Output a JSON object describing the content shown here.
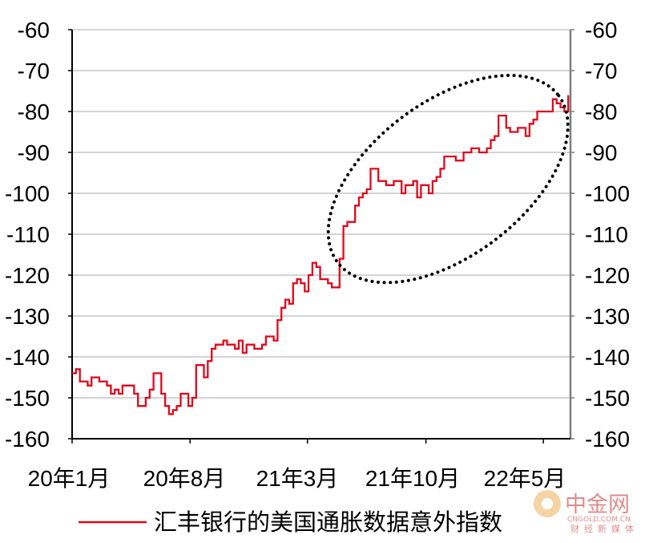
{
  "chart_data": {
    "type": "line",
    "title": "",
    "xlabel": "",
    "ylabel": "",
    "ylim": [
      -160,
      -60
    ],
    "y_ticks": [
      -60,
      -70,
      -80,
      -90,
      -100,
      -110,
      -120,
      -130,
      -140,
      -150,
      -160
    ],
    "y_tick_labels": [
      "-60",
      "-70",
      "-80",
      "-90",
      "-100",
      "-110",
      "-120",
      "-130",
      "-140",
      "-150",
      "-160"
    ],
    "x_tick_labels": [
      "20年1月",
      "20年8月",
      "21年3月",
      "21年10月",
      "22年5月"
    ],
    "grid": "horizontal",
    "legend_position": "bottom",
    "series": [
      {
        "name": "汇丰银行的美国通胀数据意外指数",
        "color": "#e0081c",
        "points": [
          [
            "2020-01-01",
            -144
          ],
          [
            "2020-01-08",
            -143
          ],
          [
            "2020-01-15",
            -146
          ],
          [
            "2020-01-29",
            -147
          ],
          [
            "2020-02-05",
            -145
          ],
          [
            "2020-02-19",
            -146
          ],
          [
            "2020-03-04",
            -147
          ],
          [
            "2020-03-11",
            -149
          ],
          [
            "2020-03-18",
            -148
          ],
          [
            "2020-03-25",
            -149
          ],
          [
            "2020-04-01",
            -147
          ],
          [
            "2020-04-22",
            -149
          ],
          [
            "2020-04-29",
            -152
          ],
          [
            "2020-05-13",
            -150
          ],
          [
            "2020-05-20",
            -148
          ],
          [
            "2020-05-27",
            -144
          ],
          [
            "2020-06-10",
            -149
          ],
          [
            "2020-06-17",
            -152
          ],
          [
            "2020-06-24",
            -154
          ],
          [
            "2020-07-01",
            -153
          ],
          [
            "2020-07-08",
            -152
          ],
          [
            "2020-07-15",
            -149
          ],
          [
            "2020-07-29",
            -152
          ],
          [
            "2020-08-05",
            -150
          ],
          [
            "2020-08-12",
            -142
          ],
          [
            "2020-08-26",
            -145
          ],
          [
            "2020-09-02",
            -141
          ],
          [
            "2020-09-09",
            -138
          ],
          [
            "2020-09-16",
            -137
          ],
          [
            "2020-09-30",
            -136
          ],
          [
            "2020-10-07",
            -137
          ],
          [
            "2020-10-21",
            -138
          ],
          [
            "2020-10-28",
            -136
          ],
          [
            "2020-11-04",
            -139
          ],
          [
            "2020-11-11",
            -137
          ],
          [
            "2020-11-25",
            -138
          ],
          [
            "2020-12-09",
            -137
          ],
          [
            "2020-12-16",
            -135
          ],
          [
            "2020-12-30",
            -136
          ],
          [
            "2021-01-06",
            -131
          ],
          [
            "2021-01-13",
            -128
          ],
          [
            "2021-01-20",
            -126
          ],
          [
            "2021-01-27",
            -127
          ],
          [
            "2021-02-03",
            -122
          ],
          [
            "2021-02-10",
            -121
          ],
          [
            "2021-02-17",
            -122
          ],
          [
            "2021-02-24",
            -124
          ],
          [
            "2021-03-03",
            -120
          ],
          [
            "2021-03-10",
            -117
          ],
          [
            "2021-03-17",
            -118
          ],
          [
            "2021-03-24",
            -121
          ],
          [
            "2021-04-07",
            -122
          ],
          [
            "2021-04-14",
            -123
          ],
          [
            "2021-04-28",
            -116
          ],
          [
            "2021-05-05",
            -108
          ],
          [
            "2021-05-12",
            -107
          ],
          [
            "2021-05-26",
            -103
          ],
          [
            "2021-06-02",
            -101
          ],
          [
            "2021-06-09",
            -100
          ],
          [
            "2021-06-16",
            -99
          ],
          [
            "2021-06-23",
            -94
          ],
          [
            "2021-07-07",
            -97
          ],
          [
            "2021-07-21",
            -98
          ],
          [
            "2021-08-04",
            -97
          ],
          [
            "2021-08-18",
            -100
          ],
          [
            "2021-08-25",
            -98
          ],
          [
            "2021-09-08",
            -97
          ],
          [
            "2021-09-15",
            -101
          ],
          [
            "2021-09-22",
            -98
          ],
          [
            "2021-10-06",
            -100
          ],
          [
            "2021-10-13",
            -97
          ],
          [
            "2021-10-20",
            -96
          ],
          [
            "2021-10-27",
            -94
          ],
          [
            "2021-11-03",
            -91
          ],
          [
            "2021-11-24",
            -92
          ],
          [
            "2021-12-08",
            -90
          ],
          [
            "2021-12-22",
            -89
          ],
          [
            "2022-01-05",
            -90
          ],
          [
            "2022-01-19",
            -89
          ],
          [
            "2022-01-26",
            -87
          ],
          [
            "2022-02-02",
            -86
          ],
          [
            "2022-02-09",
            -81
          ],
          [
            "2022-02-23",
            -84
          ],
          [
            "2022-03-02",
            -85
          ],
          [
            "2022-03-16",
            -84
          ],
          [
            "2022-03-30",
            -86
          ],
          [
            "2022-04-06",
            -83
          ],
          [
            "2022-04-13",
            -82
          ],
          [
            "2022-04-20",
            -80
          ],
          [
            "2022-05-04",
            -80
          ],
          [
            "2022-05-18",
            -77
          ],
          [
            "2022-05-25",
            -78
          ],
          [
            "2022-06-01",
            -79
          ],
          [
            "2022-06-08",
            -80
          ],
          [
            "2022-06-15",
            -76
          ]
        ]
      }
    ],
    "annotation": {
      "shape": "dotted-ellipse",
      "color": "#000000",
      "center": [
        "2021-11-10",
        -96.5
      ],
      "covers_x": [
        "2021-03-01",
        "2022-06-20"
      ]
    }
  },
  "watermark": {
    "name": "中金网",
    "domain": "CNGOLD.COM.CN",
    "slogan": "财经新媒体",
    "logo_color": "#e8a13a"
  }
}
